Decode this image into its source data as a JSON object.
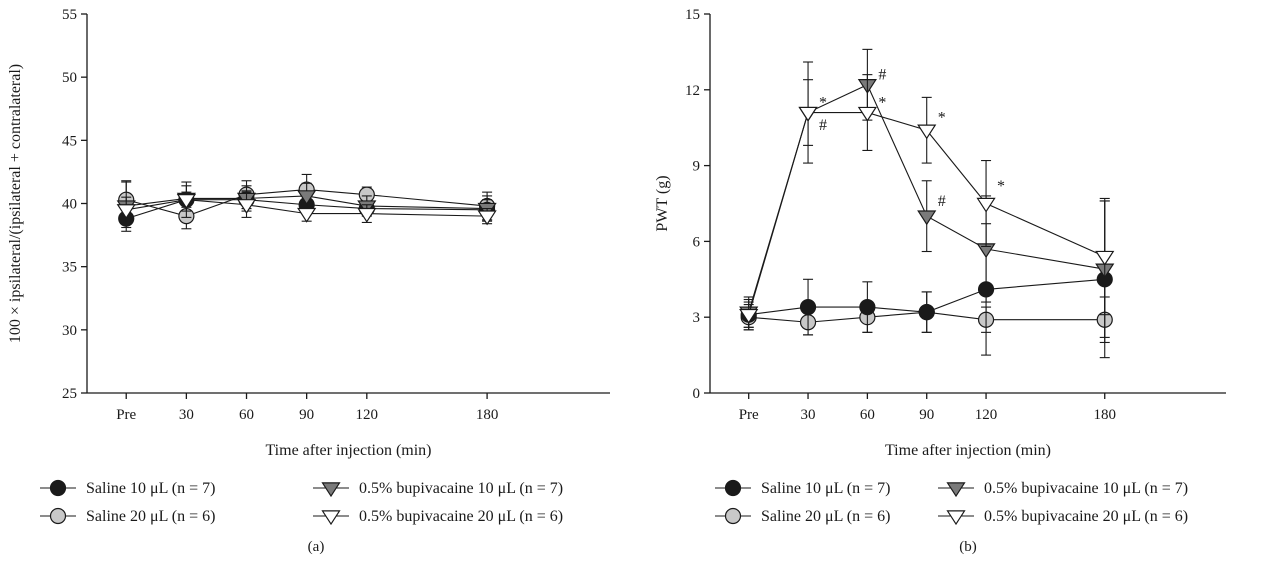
{
  "colors": {
    "axis": "#1a1a1a",
    "saline10": "#1a1a1a",
    "saline20": "#c8c8c8",
    "bupi10": "#7a7a7a",
    "bupi20": "#ffffff"
  },
  "legend": [
    {
      "key": "saline10",
      "label": "Saline 10 μL (n = 7)",
      "marker": "circle"
    },
    {
      "key": "saline20",
      "label": "Saline 20 μL (n = 6)",
      "marker": "circle"
    },
    {
      "key": "bupi10",
      "label": "0.5% bupivacaine 10 μL (n = 7)",
      "marker": "triangle-down"
    },
    {
      "key": "bupi20",
      "label": "0.5% bupivacaine 20 μL (n = 6)",
      "marker": "triangle-down"
    }
  ],
  "chart_data": [
    {
      "panel": "(a)",
      "type": "line",
      "title": "",
      "xlabel": "Time after injection (min)",
      "ylabel": "100 × ipsilateral/(ipsilateral + contralateral)",
      "categories": [
        "Pre",
        "30",
        "60",
        "90",
        "120",
        "180"
      ],
      "x_positions": [
        0,
        30,
        60,
        90,
        120,
        180
      ],
      "ylim": [
        25,
        55
      ],
      "yticks": [
        25,
        30,
        35,
        40,
        45,
        50,
        55
      ],
      "grid": false,
      "legend_placement": "bottom",
      "series": [
        {
          "key": "saline10",
          "values": [
            38.8,
            40.3,
            40.3,
            39.9,
            39.6,
            39.5
          ],
          "err": [
            0.7,
            0.6,
            0.7,
            0.7,
            0.5,
            0.8
          ]
        },
        {
          "key": "saline20",
          "values": [
            40.3,
            39.0,
            40.7,
            41.1,
            40.7,
            39.8
          ],
          "err": [
            1.4,
            1.0,
            1.1,
            1.2,
            0.6,
            1.1
          ]
        },
        {
          "key": "bupi10",
          "values": [
            39.8,
            40.4,
            40.4,
            40.6,
            39.8,
            39.6
          ],
          "err": [
            2.0,
            1.0,
            1.0,
            1.0,
            0.8,
            1.0
          ]
        },
        {
          "key": "bupi20",
          "values": [
            39.5,
            40.3,
            39.9,
            39.2,
            39.2,
            39.0
          ],
          "err": [
            1.0,
            1.4,
            1.0,
            0.6,
            0.7,
            0.6
          ]
        }
      ],
      "annotations": []
    },
    {
      "panel": "(b)",
      "type": "line",
      "title": "",
      "xlabel": "Time after injection (min)",
      "ylabel": "PWT (g)",
      "categories": [
        "Pre",
        "30",
        "60",
        "90",
        "120",
        "180"
      ],
      "x_positions": [
        0,
        30,
        60,
        90,
        120,
        180
      ],
      "ylim": [
        0,
        15
      ],
      "yticks": [
        0,
        3,
        6,
        9,
        12,
        15
      ],
      "grid": false,
      "legend_placement": "bottom",
      "series": [
        {
          "key": "saline10",
          "values": [
            3.1,
            3.4,
            3.4,
            3.2,
            4.1,
            4.5
          ],
          "err": [
            0.5,
            1.1,
            1.0,
            0.8,
            2.6,
            3.1
          ]
        },
        {
          "key": "saline20",
          "values": [
            3.0,
            2.8,
            3.0,
            3.2,
            2.9,
            2.9
          ],
          "err": [
            0.5,
            0.5,
            0.6,
            0.8,
            0.5,
            0.9
          ]
        },
        {
          "key": "bupi10",
          "values": [
            3.2,
            11.1,
            12.2,
            7.0,
            5.7,
            4.9
          ],
          "err": [
            0.6,
            1.3,
            1.4,
            1.4,
            2.1,
            2.7
          ]
        },
        {
          "key": "bupi20",
          "values": [
            3.1,
            11.1,
            11.1,
            10.4,
            7.5,
            5.4
          ],
          "err": [
            0.6,
            2.0,
            1.5,
            1.3,
            1.7,
            2.3
          ]
        }
      ],
      "annotations": [
        {
          "text": "*",
          "x": 30,
          "y": 11.5
        },
        {
          "text": "#",
          "x": 30,
          "y": 10.6
        },
        {
          "text": "#",
          "x": 60,
          "y": 12.6
        },
        {
          "text": "*",
          "x": 60,
          "y": 11.5
        },
        {
          "text": "*",
          "x": 90,
          "y": 10.9
        },
        {
          "text": "#",
          "x": 90,
          "y": 7.6
        },
        {
          "text": "*",
          "x": 120,
          "y": 8.2
        }
      ]
    }
  ]
}
